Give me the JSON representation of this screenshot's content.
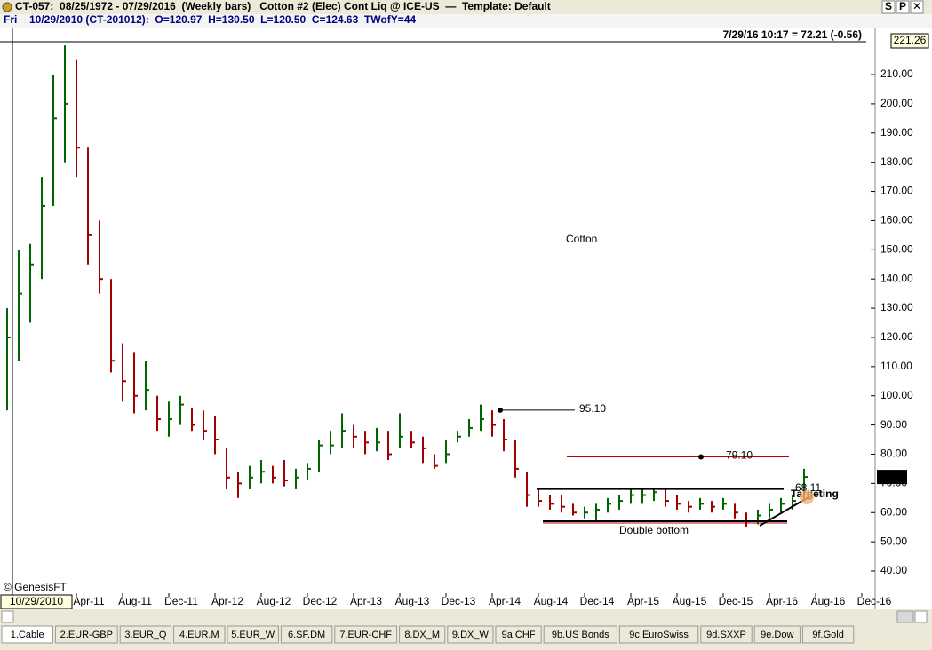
{
  "window": {
    "title": "CT-057:  08/25/1972 - 07/29/2016  (Weekly bars)   Cotton #2 (Elec) Cont Liq @ ICE-US  —  Template: Default",
    "day": "Fri",
    "bar_info": "10/29/2010 (CT-201012):  O=120.97  H=130.50  L=120.50  C=124.63  TWofY=44",
    "quote": "7/29/16 10:17 = 72.21 (-0.56)",
    "cursor_date": "10/29/2010",
    "copyright": "© GenesisFT",
    "buttons": [
      "S",
      "P",
      "✕"
    ]
  },
  "tabs": [
    "1.Cable",
    "2.EUR-GBP",
    "3.EUR_Q",
    "4.EUR.M",
    "5.EUR_W",
    "6.SF.DM",
    "7.EUR-CHF",
    "8.DX_M",
    "9.DX_W",
    "9a.CHF",
    "9b.US Bonds",
    "9c.EuroSwiss",
    "9d.SXXP",
    "9e.Dow",
    "9f.Gold"
  ],
  "chart_data": {
    "type": "ohlc",
    "categories": [
      null,
      null,
      null,
      null,
      null,
      null,
      "Apr-11",
      null,
      null,
      null,
      "Aug-11",
      null,
      null,
      null,
      "Dec-11",
      null,
      null,
      null,
      "Apr-12",
      null,
      null,
      null,
      "Aug-12",
      null,
      null,
      null,
      "Dec-12",
      null,
      null,
      null,
      "Apr-13",
      null,
      null,
      null,
      "Aug-13",
      null,
      null,
      null,
      "Dec-13",
      null,
      null,
      null,
      "Apr-14",
      null,
      null,
      null,
      "Aug-14",
      null,
      null,
      null,
      "Dec-14",
      null,
      null,
      null,
      "Apr-15",
      null,
      null,
      null,
      "Aug-15",
      null,
      null,
      null,
      "Dec-15",
      null,
      null,
      null,
      "Apr-16",
      null,
      null,
      null,
      "Aug-16",
      null,
      null,
      null,
      "Dec-16"
    ],
    "high": [
      130,
      150,
      152,
      175,
      210,
      220,
      215,
      185,
      160,
      140,
      118,
      115,
      112,
      100,
      98,
      100,
      96,
      95,
      93,
      82,
      74,
      76,
      78,
      76,
      78,
      75,
      77,
      85,
      88,
      94,
      90,
      88,
      89,
      88,
      94,
      88,
      86,
      80,
      85,
      88,
      92,
      97,
      95,
      92,
      85,
      74,
      68,
      66,
      66,
      63,
      62,
      63,
      65,
      66,
      68,
      68,
      68,
      68,
      66,
      64,
      65,
      64,
      65,
      63,
      60,
      61,
      63,
      65,
      66,
      75,
      null,
      null,
      null,
      null,
      null
    ],
    "low": [
      95,
      112,
      125,
      140,
      165,
      180,
      175,
      145,
      135,
      108,
      98,
      94,
      95,
      88,
      86,
      90,
      88,
      85,
      80,
      68,
      65,
      68,
      70,
      70,
      69,
      68,
      71,
      74,
      80,
      82,
      82,
      80,
      81,
      78,
      82,
      82,
      77,
      75,
      77,
      84,
      86,
      88,
      86,
      81,
      72,
      62,
      62,
      61,
      60,
      59,
      58,
      57,
      60,
      61,
      63,
      63,
      64,
      62,
      61,
      60,
      61,
      60,
      61,
      58,
      55,
      56,
      58,
      60,
      61,
      64,
      null,
      null,
      null,
      null,
      null
    ],
    "close": [
      120,
      135,
      145,
      165,
      195,
      200,
      185,
      155,
      140,
      112,
      105,
      100,
      102,
      92,
      92,
      97,
      90,
      88,
      85,
      72,
      70,
      72,
      74,
      72,
      71,
      72,
      75,
      83,
      83,
      88,
      86,
      84,
      84,
      80,
      86,
      84,
      82,
      76,
      80,
      86,
      89,
      92,
      90,
      85,
      75,
      66,
      64,
      63,
      62,
      60,
      60,
      61,
      63,
      64,
      66,
      66,
      67,
      64,
      63,
      62,
      63,
      62,
      63,
      60,
      57,
      59,
      61,
      63,
      64,
      72.21,
      null,
      null,
      null,
      null,
      null
    ],
    "up_color": "#006400",
    "down_color": "#a00000",
    "ylim": [
      32.4,
      221.26
    ],
    "yticks": [
      {
        "value": 40,
        "label": "40.00"
      },
      {
        "value": 50,
        "label": "50.00"
      },
      {
        "value": 60,
        "label": "60.00"
      },
      {
        "value": 70,
        "label": "70.00"
      },
      {
        "value": 80,
        "label": "80.00"
      },
      {
        "value": 90,
        "label": "90.00"
      },
      {
        "value": 100,
        "label": "100.00"
      },
      {
        "value": 110,
        "label": "110.00"
      },
      {
        "value": 120,
        "label": "120.00"
      },
      {
        "value": 130,
        "label": "130.00"
      },
      {
        "value": 140,
        "label": "140.00"
      },
      {
        "value": 150,
        "label": "150.00"
      },
      {
        "value": 160,
        "label": "160.00"
      },
      {
        "value": 170,
        "label": "170.00"
      },
      {
        "value": 180,
        "label": "180.00"
      },
      {
        "value": 190,
        "label": "190.00"
      },
      {
        "value": 200,
        "label": "200.00"
      },
      {
        "value": 210,
        "label": "210.00"
      }
    ],
    "levels": [
      {
        "value": 95.1,
        "label": "95.10",
        "color": "#000000"
      },
      {
        "value": 79.1,
        "label": "79.10",
        "color": "#c00000"
      },
      {
        "value": 68.11,
        "label": "68.11",
        "color": "#000000"
      }
    ],
    "annotations": [
      "Cotton",
      "Double bottom",
      "Targeting"
    ]
  }
}
